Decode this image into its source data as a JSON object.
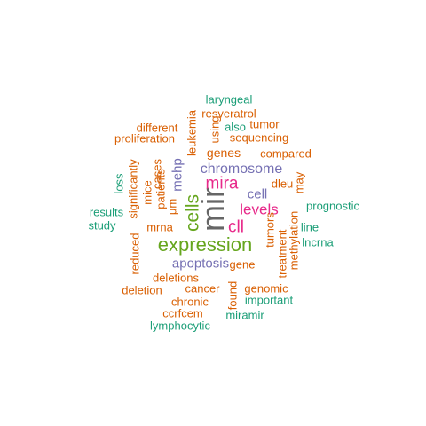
{
  "colors": {
    "green": "#1B9E77",
    "orange": "#D95F02",
    "purple": "#7570B3",
    "magenta": "#E7298A",
    "lime": "#66A61E",
    "gray": "#666666"
  },
  "words": [
    {
      "key": "mir",
      "text": "mir",
      "color": "#666666",
      "rotated": true
    },
    {
      "key": "expression",
      "text": "expression",
      "color": "#66A61E",
      "rotated": false
    },
    {
      "key": "cells",
      "text": "cells",
      "color": "#66A61E",
      "rotated": true
    },
    {
      "key": "mira",
      "text": "mira",
      "color": "#E7298A",
      "rotated": false
    },
    {
      "key": "cll",
      "text": "cll",
      "color": "#E7298A",
      "rotated": false
    },
    {
      "key": "levels",
      "text": "levels",
      "color": "#E7298A",
      "rotated": false
    },
    {
      "key": "chromosome",
      "text": "chromosome",
      "color": "#7570B3",
      "rotated": false
    },
    {
      "key": "apoptosis",
      "text": "apoptosis",
      "color": "#7570B3",
      "rotated": false
    },
    {
      "key": "cell",
      "text": "cell",
      "color": "#7570B3",
      "rotated": false
    },
    {
      "key": "mehp",
      "text": "mehp",
      "color": "#7570B3",
      "rotated": true
    },
    {
      "key": "laryngeal",
      "text": "laryngeal",
      "color": "#1B9E77",
      "rotated": false
    },
    {
      "key": "resveratrol",
      "text": "resveratrol",
      "color": "#D95F02",
      "rotated": false
    },
    {
      "key": "leukemia",
      "text": "leukemia",
      "color": "#D95F02",
      "rotated": true
    },
    {
      "key": "using",
      "text": "using",
      "color": "#D95F02",
      "rotated": true
    },
    {
      "key": "tumor",
      "text": "tumor",
      "color": "#D95F02",
      "rotated": false
    },
    {
      "key": "different",
      "text": "different",
      "color": "#D95F02",
      "rotated": false
    },
    {
      "key": "also",
      "text": "also",
      "color": "#1B9E77",
      "rotated": false
    },
    {
      "key": "proliferation",
      "text": "proliferation",
      "color": "#D95F02",
      "rotated": false
    },
    {
      "key": "sequencing",
      "text": "sequencing",
      "color": "#D95F02",
      "rotated": false
    },
    {
      "key": "genes",
      "text": "genes",
      "color": "#D95F02",
      "rotated": false
    },
    {
      "key": "compared",
      "text": "compared",
      "color": "#D95F02",
      "rotated": false
    },
    {
      "key": "significantly",
      "text": "significantly",
      "color": "#D95F02",
      "rotated": true
    },
    {
      "key": "cases",
      "text": "cases",
      "color": "#D95F02",
      "rotated": true
    },
    {
      "key": "patients",
      "text": "patients",
      "color": "#D95F02",
      "rotated": true
    },
    {
      "key": "loss",
      "text": "loss",
      "color": "#1B9E77",
      "rotated": true
    },
    {
      "key": "dleu",
      "text": "dleu",
      "color": "#D95F02",
      "rotated": false
    },
    {
      "key": "may",
      "text": "may",
      "color": "#D95F02",
      "rotated": true
    },
    {
      "key": "mice",
      "text": "mice",
      "color": "#D95F02",
      "rotated": true
    },
    {
      "key": "um",
      "text": "μm",
      "color": "#D95F02",
      "rotated": true
    },
    {
      "key": "prognostic",
      "text": "prognostic",
      "color": "#1B9E77",
      "rotated": false
    },
    {
      "key": "results",
      "text": "results",
      "color": "#1B9E77",
      "rotated": false
    },
    {
      "key": "study",
      "text": "study",
      "color": "#1B9E77",
      "rotated": false
    },
    {
      "key": "tumors",
      "text": "tumors",
      "color": "#D95F02",
      "rotated": true
    },
    {
      "key": "line",
      "text": "line",
      "color": "#1B9E77",
      "rotated": false
    },
    {
      "key": "methylation",
      "text": "methylation",
      "color": "#D95F02",
      "rotated": true
    },
    {
      "key": "mrna",
      "text": "mrna",
      "color": "#D95F02",
      "rotated": false
    },
    {
      "key": "lncrna",
      "text": "lncrna",
      "color": "#1B9E77",
      "rotated": false
    },
    {
      "key": "reduced",
      "text": "reduced",
      "color": "#D95F02",
      "rotated": true
    },
    {
      "key": "treatment",
      "text": "treatment",
      "color": "#D95F02",
      "rotated": true
    },
    {
      "key": "gene",
      "text": "gene",
      "color": "#D95F02",
      "rotated": false
    },
    {
      "key": "deletions",
      "text": "deletions",
      "color": "#D95F02",
      "rotated": false
    },
    {
      "key": "cancer",
      "text": "cancer",
      "color": "#D95F02",
      "rotated": false
    },
    {
      "key": "found",
      "text": "found",
      "color": "#D95F02",
      "rotated": true
    },
    {
      "key": "genomic",
      "text": "genomic",
      "color": "#D95F02",
      "rotated": false
    },
    {
      "key": "deletion",
      "text": "deletion",
      "color": "#D95F02",
      "rotated": false
    },
    {
      "key": "important",
      "text": "important",
      "color": "#1B9E77",
      "rotated": false
    },
    {
      "key": "chronic",
      "text": "chronic",
      "color": "#D95F02",
      "rotated": false
    },
    {
      "key": "ccrfcem",
      "text": "ccrfcem",
      "color": "#D95F02",
      "rotated": false
    },
    {
      "key": "miramir",
      "text": "miramir",
      "color": "#1B9E77",
      "rotated": false
    },
    {
      "key": "lymphocytic",
      "text": "lymphocytic",
      "color": "#1B9E77",
      "rotated": false
    }
  ]
}
